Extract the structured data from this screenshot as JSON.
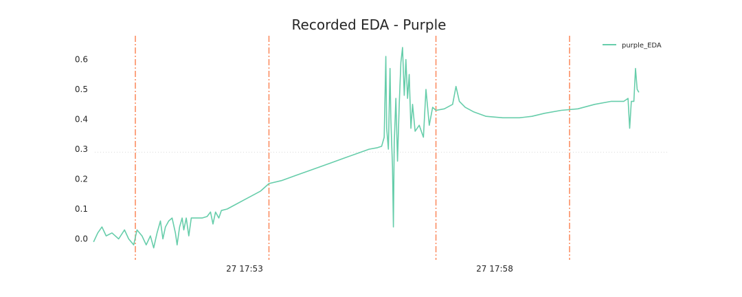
{
  "chart_data": {
    "type": "line",
    "title": "Recorded EDA - Purple",
    "xlabel": "",
    "ylabel": "",
    "x_tick_labels": [
      "27 17:53",
      "27 17:58"
    ],
    "x_range": [
      "17:51:30",
      "18:02:00"
    ],
    "ylim": [
      -0.07,
      0.68
    ],
    "y_ticks": [
      0.0,
      0.1,
      0.2,
      0.3,
      0.4,
      0.5,
      0.6
    ],
    "y_tick_labels": [
      "0.0",
      "0.1",
      "0.2",
      "0.3",
      "0.4",
      "0.5",
      "0.6"
    ],
    "grid": "horizontal dotted at 0.29",
    "legend": {
      "position": "top-right",
      "entries": [
        "purple_EDA"
      ]
    },
    "reference_line_y": 0.29,
    "vertical_markers": [
      "17:52:20",
      "17:55:00",
      "17:58:20",
      "18:01:00"
    ],
    "series": [
      {
        "name": "purple_EDA",
        "color": "#66cdaa",
        "points": [
          [
            "17:51:30",
            -0.01
          ],
          [
            "17:51:35",
            0.02
          ],
          [
            "17:51:40",
            0.04
          ],
          [
            "17:51:45",
            0.01
          ],
          [
            "17:51:52",
            0.02
          ],
          [
            "17:52:00",
            0.0
          ],
          [
            "17:52:07",
            0.03
          ],
          [
            "17:52:12",
            0.0
          ],
          [
            "17:52:18",
            -0.02
          ],
          [
            "17:52:22",
            0.03
          ],
          [
            "17:52:28",
            0.01
          ],
          [
            "17:52:33",
            -0.02
          ],
          [
            "17:52:38",
            0.01
          ],
          [
            "17:52:42",
            -0.03
          ],
          [
            "17:52:46",
            0.02
          ],
          [
            "17:52:50",
            0.06
          ],
          [
            "17:52:53",
            0.0
          ],
          [
            "17:52:56",
            0.04
          ],
          [
            "17:53:00",
            0.06
          ],
          [
            "17:53:04",
            0.07
          ],
          [
            "17:53:08",
            0.02
          ],
          [
            "17:53:10",
            -0.02
          ],
          [
            "17:53:13",
            0.04
          ],
          [
            "17:53:16",
            0.07
          ],
          [
            "17:53:18",
            0.03
          ],
          [
            "17:53:21",
            0.07
          ],
          [
            "17:53:24",
            0.01
          ],
          [
            "17:53:27",
            0.07
          ],
          [
            "17:53:32",
            0.07
          ],
          [
            "17:53:40",
            0.07
          ],
          [
            "17:53:46",
            0.075
          ],
          [
            "17:53:50",
            0.09
          ],
          [
            "17:53:53",
            0.05
          ],
          [
            "17:53:56",
            0.09
          ],
          [
            "17:54:00",
            0.07
          ],
          [
            "17:54:03",
            0.095
          ],
          [
            "17:54:10",
            0.1
          ],
          [
            "17:54:20",
            0.115
          ],
          [
            "17:54:30",
            0.13
          ],
          [
            "17:54:40",
            0.145
          ],
          [
            "17:54:50",
            0.16
          ],
          [
            "17:55:00",
            0.185
          ],
          [
            "17:55:15",
            0.195
          ],
          [
            "17:55:30",
            0.21
          ],
          [
            "17:55:45",
            0.225
          ],
          [
            "17:56:00",
            0.24
          ],
          [
            "17:56:15",
            0.255
          ],
          [
            "17:56:30",
            0.27
          ],
          [
            "17:56:45",
            0.285
          ],
          [
            "17:57:00",
            0.3
          ],
          [
            "17:57:10",
            0.305
          ],
          [
            "17:57:15",
            0.31
          ],
          [
            "17:57:18",
            0.34
          ],
          [
            "17:57:20",
            0.61
          ],
          [
            "17:57:21",
            0.37
          ],
          [
            "17:57:23",
            0.3
          ],
          [
            "17:57:25",
            0.57
          ],
          [
            "17:57:26",
            0.4
          ],
          [
            "17:57:28",
            0.24
          ],
          [
            "17:57:29",
            0.04
          ],
          [
            "17:57:30",
            0.32
          ],
          [
            "17:57:32",
            0.47
          ],
          [
            "17:57:34",
            0.26
          ],
          [
            "17:57:36",
            0.45
          ],
          [
            "17:57:38",
            0.59
          ],
          [
            "17:57:40",
            0.64
          ],
          [
            "17:57:42",
            0.48
          ],
          [
            "17:57:44",
            0.6
          ],
          [
            "17:57:46",
            0.47
          ],
          [
            "17:57:48",
            0.55
          ],
          [
            "17:57:50",
            0.37
          ],
          [
            "17:57:52",
            0.45
          ],
          [
            "17:57:55",
            0.36
          ],
          [
            "17:58:00",
            0.38
          ],
          [
            "17:58:05",
            0.34
          ],
          [
            "17:58:08",
            0.5
          ],
          [
            "17:58:12",
            0.38
          ],
          [
            "17:58:16",
            0.44
          ],
          [
            "17:58:20",
            0.43
          ],
          [
            "17:58:30",
            0.435
          ],
          [
            "17:58:40",
            0.45
          ],
          [
            "17:58:44",
            0.51
          ],
          [
            "17:58:48",
            0.46
          ],
          [
            "17:58:55",
            0.44
          ],
          [
            "17:59:05",
            0.425
          ],
          [
            "17:59:20",
            0.41
          ],
          [
            "17:59:40",
            0.405
          ],
          [
            "18:00:00",
            0.405
          ],
          [
            "18:00:15",
            0.41
          ],
          [
            "18:00:30",
            0.42
          ],
          [
            "18:00:50",
            0.43
          ],
          [
            "18:01:10",
            0.435
          ],
          [
            "18:01:30",
            0.45
          ],
          [
            "18:01:50",
            0.46
          ],
          [
            "18:02:05",
            0.46
          ],
          [
            "18:02:10",
            0.47
          ],
          [
            "18:02:12",
            0.37
          ],
          [
            "18:02:14",
            0.46
          ],
          [
            "18:02:17",
            0.46
          ],
          [
            "18:02:19",
            0.57
          ],
          [
            "18:02:21",
            0.5
          ],
          [
            "18:02:23",
            0.49
          ]
        ]
      }
    ]
  }
}
